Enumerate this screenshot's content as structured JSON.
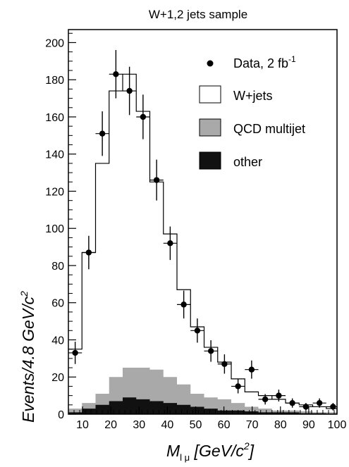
{
  "chart_data": {
    "type": "histogram",
    "title": "W+1,2 jets sample",
    "xlabel": {
      "main": "M",
      "sub": "l μ",
      "unit_prefix": " [GeV/c",
      "unit_exp": "2",
      "unit_suffix": "]"
    },
    "ylabel": {
      "main": "Events/4.8 GeV/c",
      "exp": "2"
    },
    "xlim": [
      5,
      100
    ],
    "ylim": [
      0,
      207
    ],
    "x_ticks": [
      10,
      20,
      30,
      40,
      50,
      60,
      70,
      80,
      90,
      100
    ],
    "y_ticks": [
      0,
      20,
      40,
      60,
      80,
      100,
      120,
      140,
      160,
      180,
      200
    ],
    "bin_edges": [
      5,
      9.8,
      14.6,
      19.4,
      24.2,
      29,
      33.8,
      38.6,
      43.4,
      48.2,
      53,
      57.8,
      62.6,
      67.4,
      72.2,
      77,
      81.8,
      86.6,
      91.4,
      96.2,
      101
    ],
    "series": [
      {
        "name": "W+jets",
        "style": "step",
        "color": "#ffffff",
        "values": [
          35,
          87,
          135,
          174,
          183,
          163,
          125,
          97,
          67,
          47,
          36,
          28,
          19,
          12,
          10,
          8,
          6,
          5,
          4,
          3
        ]
      },
      {
        "name": "QCD multijet",
        "style": "filled",
        "color": "#a9a9a9",
        "values": [
          3,
          6,
          11,
          20,
          25,
          25,
          24,
          20,
          16,
          11,
          9,
          8,
          6,
          4,
          3,
          2,
          2,
          1.5,
          1,
          1
        ]
      },
      {
        "name": "other",
        "style": "filled",
        "color": "#111111",
        "values": [
          1,
          3,
          5,
          7,
          9,
          8,
          7,
          6,
          5,
          4,
          3,
          2,
          2,
          1.5,
          1,
          1,
          1,
          0.5,
          0.5,
          0.3
        ]
      },
      {
        "name": "Data, 2 fb",
        "name_sup": "-1",
        "style": "points",
        "color": "#000000",
        "x": [
          7.4,
          12.2,
          17,
          21.8,
          26.6,
          31.4,
          36.2,
          41,
          45.8,
          50.6,
          55.4,
          60.2,
          65,
          69.8,
          74.6,
          79.4,
          84.2,
          89,
          93.8,
          98.6
        ],
        "y": [
          33,
          87,
          151,
          183,
          174,
          160,
          126,
          92,
          59,
          45,
          34,
          27,
          15,
          24,
          8,
          10,
          6,
          4,
          6,
          4
        ],
        "yerr": [
          6,
          9,
          12,
          13,
          13,
          12,
          11,
          9,
          7.5,
          6.5,
          5.8,
          5.2,
          3.8,
          4.9,
          2.8,
          3.2,
          2.5,
          2,
          2.5,
          2
        ]
      }
    ],
    "legend_position": "top-right"
  }
}
